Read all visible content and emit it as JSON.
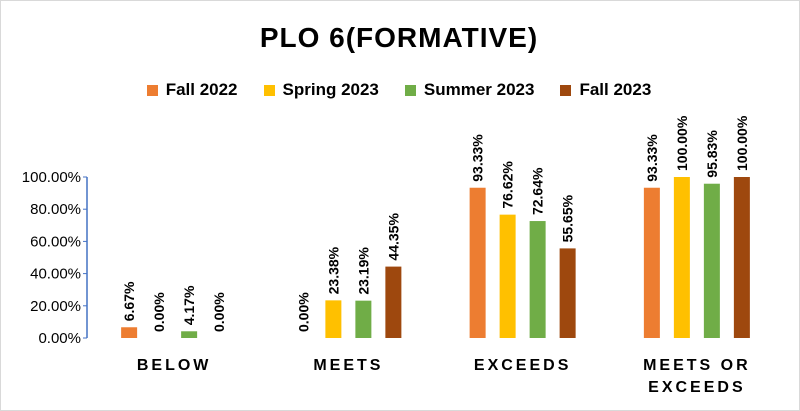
{
  "chart_data": {
    "type": "bar",
    "title": "PLO 6(FORMATIVE)",
    "categories": [
      [
        "BELOW"
      ],
      [
        "MEETS"
      ],
      [
        "EXCEEDS"
      ],
      [
        "MEETS OR",
        "EXCEEDS"
      ]
    ],
    "series": [
      {
        "name": "Fall 2022",
        "color": "#ED7D31",
        "values": [
          6.67,
          0.0,
          93.33,
          93.33
        ]
      },
      {
        "name": "Spring 2023",
        "color": "#FFC000",
        "values": [
          0.0,
          23.38,
          76.62,
          100.0
        ]
      },
      {
        "name": "Summer 2023",
        "color": "#70AD47",
        "values": [
          4.17,
          23.19,
          72.64,
          95.83
        ]
      },
      {
        "name": "Fall 2023",
        "color": "#9E480E",
        "values": [
          0.0,
          44.35,
          55.65,
          100.0
        ]
      }
    ],
    "yticks": [
      "0.00%",
      "20.00%",
      "40.00%",
      "60.00%",
      "80.00%",
      "100.00%"
    ],
    "ylim": [
      0,
      100
    ],
    "legend_position": "top",
    "grid": false
  }
}
